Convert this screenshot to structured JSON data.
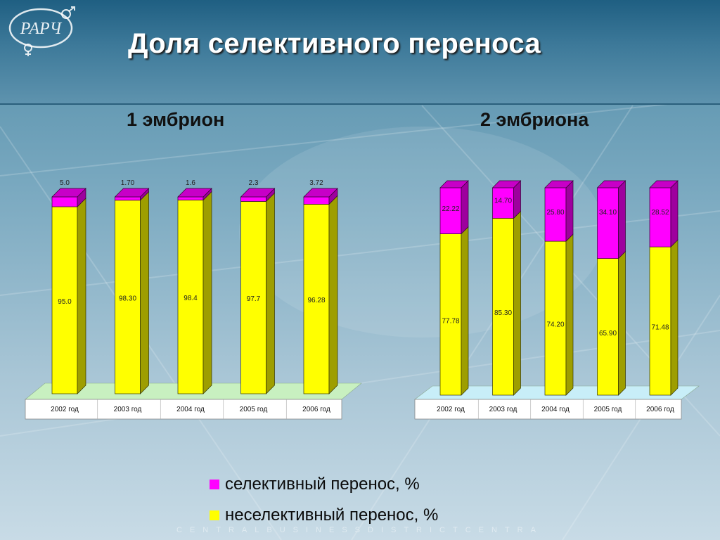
{
  "title": "Доля селективного переноса",
  "footer_text": "CENTRALBUSINESSDISTRICTCENTRA",
  "colors": {
    "selective": "#ff00ff",
    "nonselective": "#ffff00"
  },
  "legend": [
    {
      "label": "селективный перенос, %",
      "color": "#ff00ff"
    },
    {
      "label": "неселективный перенос, %",
      "color": "#ffff00"
    }
  ],
  "chart_data": [
    {
      "type": "bar",
      "stacked": true,
      "title": "1 эмбрион",
      "categories": [
        "2002 год",
        "2003 год",
        "2004 год",
        "2005 год",
        "2006 год"
      ],
      "series": [
        {
          "name": "неселективный перенос, %",
          "values": [
            95.0,
            98.3,
            98.4,
            97.7,
            96.28
          ],
          "labels": [
            "95.0",
            "98.30",
            "98.4",
            "97.7",
            "96.28"
          ]
        },
        {
          "name": "селективный перенос, %",
          "values": [
            5.0,
            1.7,
            1.6,
            2.3,
            3.72
          ],
          "labels": [
            "5.0",
            "1.70",
            "1.6",
            "2.3",
            "3.72"
          ]
        }
      ],
      "ylim": [
        0,
        100
      ],
      "floor_color": "#c8f0c0"
    },
    {
      "type": "bar",
      "stacked": true,
      "title": "2 эмбриона",
      "categories": [
        "2002 год",
        "2003 год",
        "2004 год",
        "2005 год",
        "2006 год"
      ],
      "series": [
        {
          "name": "неселективный перенос, %",
          "values": [
            77.78,
            85.3,
            74.2,
            65.9,
            71.48
          ],
          "labels": [
            "77.78",
            "85.30",
            "74.20",
            "65.90",
            "71.48"
          ]
        },
        {
          "name": "селективный перенос, %",
          "values": [
            22.22,
            14.7,
            25.8,
            34.1,
            28.52
          ],
          "labels": [
            "22.22",
            "14.70",
            "25.80",
            "34.10",
            "28.52"
          ]
        }
      ],
      "ylim": [
        0,
        100
      ],
      "floor_color": "#c8eef8"
    }
  ]
}
